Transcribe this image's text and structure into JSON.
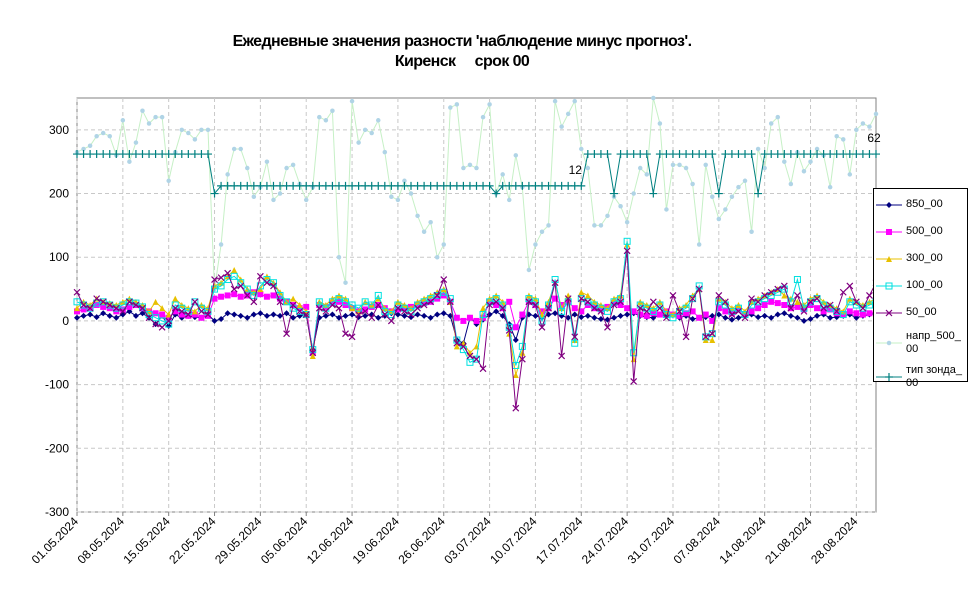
{
  "chart_data": {
    "type": "line",
    "title": "Ежедневные значения разности 'наблюдение минус прогноз'.",
    "subtitle": "Киренск     срок 00",
    "categories": [
      "01.05.2024",
      null,
      null,
      null,
      null,
      null,
      null,
      "08.05.2024",
      null,
      null,
      null,
      null,
      null,
      null,
      "15.05.2024",
      null,
      null,
      null,
      null,
      null,
      null,
      "22.05.2024",
      null,
      null,
      null,
      null,
      null,
      null,
      "29.05.2024",
      null,
      null,
      null,
      null,
      null,
      null,
      "05.06.2024",
      null,
      null,
      null,
      null,
      null,
      null,
      "12.06.2024",
      null,
      null,
      null,
      null,
      null,
      null,
      "19.06.2024",
      null,
      null,
      null,
      null,
      null,
      null,
      "26.06.2024",
      null,
      null,
      null,
      null,
      null,
      null,
      "03.07.2024",
      null,
      null,
      null,
      null,
      null,
      null,
      "10.07.2024",
      null,
      null,
      null,
      null,
      null,
      null,
      "17.07.2024",
      null,
      null,
      null,
      null,
      null,
      null,
      "24.07.2024",
      null,
      null,
      null,
      null,
      null,
      null,
      "31.07.2024",
      null,
      null,
      null,
      null,
      null,
      null,
      "07.08.2024",
      null,
      null,
      null,
      null,
      null,
      null,
      "14.08.2024",
      null,
      null,
      null,
      null,
      null,
      null,
      "21.08.2024",
      null,
      null,
      null,
      null,
      null,
      null,
      "28.08.2024",
      null,
      null,
      null
    ],
    "ylim": [
      -300,
      350
    ],
    "yticks": [
      -300,
      -200,
      -100,
      0,
      100,
      200,
      300
    ],
    "grid": true,
    "annotations": [
      "12",
      "62"
    ],
    "series": [
      {
        "name": "напр_500_00",
        "color": "#b0d4e6",
        "line_color": "#c6f0c6",
        "marker": "circle",
        "values": [
          265,
          270,
          275,
          290,
          295,
          290,
          260,
          315,
          250,
          280,
          330,
          310,
          320,
          320,
          220,
          265,
          300,
          295,
          285,
          300,
          300,
          50,
          120,
          230,
          270,
          270,
          240,
          195,
          210,
          250,
          190,
          200,
          240,
          245,
          215,
          190,
          210,
          320,
          315,
          330,
          100,
          60,
          345,
          280,
          300,
          295,
          315,
          265,
          195,
          190,
          220,
          200,
          165,
          140,
          155,
          100,
          120,
          335,
          340,
          240,
          245,
          240,
          320,
          340,
          200,
          230,
          190,
          260,
          210,
          80,
          120,
          140,
          150,
          345,
          305,
          325,
          345,
          270,
          240,
          150,
          150,
          165,
          195,
          180,
          155,
          200,
          240,
          230,
          350,
          310,
          175,
          245,
          245,
          240,
          215,
          120,
          245,
          195,
          160,
          175,
          195,
          210,
          220,
          140,
          270,
          240,
          310,
          320,
          250,
          215,
          265,
          235,
          250,
          270,
          260,
          210,
          290,
          285,
          230,
          300,
          310,
          305,
          325
        ]
      },
      {
        "name": "тип зонда_00",
        "color": "#008080",
        "marker": "plus",
        "values": [
          262,
          262,
          262,
          262,
          262,
          262,
          262,
          262,
          262,
          262,
          262,
          262,
          262,
          262,
          262,
          262,
          262,
          262,
          262,
          262,
          262,
          200,
          212,
          212,
          212,
          212,
          212,
          212,
          212,
          212,
          212,
          212,
          212,
          212,
          212,
          212,
          212,
          212,
          212,
          212,
          212,
          212,
          212,
          212,
          212,
          212,
          212,
          212,
          212,
          212,
          212,
          212,
          212,
          212,
          212,
          212,
          212,
          212,
          212,
          212,
          212,
          212,
          212,
          212,
          200,
          212,
          212,
          212,
          212,
          212,
          212,
          212,
          212,
          212,
          212,
          212,
          212,
          212,
          262,
          262,
          262,
          262,
          200,
          262,
          262,
          262,
          262,
          262,
          200,
          262,
          262,
          262,
          262,
          262,
          262,
          262,
          262,
          262,
          200,
          262,
          262,
          262,
          262,
          262,
          200,
          262,
          262,
          262,
          262,
          262,
          262,
          262,
          262,
          262,
          262,
          262,
          262,
          262,
          262,
          262,
          262,
          262,
          262
        ]
      },
      {
        "name": "850_00",
        "color": "#000080",
        "marker": "diamond",
        "values": [
          5,
          8,
          10,
          6,
          12,
          8,
          5,
          10,
          15,
          8,
          12,
          5,
          -5,
          8,
          -8,
          10,
          5,
          8,
          6,
          5,
          10,
          0,
          3,
          12,
          10,
          8,
          5,
          10,
          12,
          8,
          10,
          8,
          12,
          5,
          8,
          10,
          -45,
          5,
          8,
          10,
          5,
          8,
          10,
          6,
          8,
          10,
          5,
          8,
          12,
          10,
          8,
          6,
          10,
          8,
          5,
          10,
          12,
          8,
          -30,
          -35,
          5,
          -5,
          2,
          10,
          15,
          8,
          -5,
          -30,
          5,
          10,
          8,
          5,
          10,
          12,
          8,
          5,
          10,
          6,
          8,
          5,
          3,
          2,
          5,
          8,
          10,
          12,
          8,
          6,
          5,
          10,
          8,
          10,
          5,
          8,
          3,
          5,
          6,
          8,
          10,
          5,
          2,
          5,
          8,
          10,
          6,
          8,
          5,
          10,
          12,
          8,
          5,
          0,
          3,
          8,
          10,
          5,
          6,
          8,
          10,
          5,
          8,
          10,
          12
        ]
      },
      {
        "name": "500_00",
        "color": "#ff00ff",
        "marker": "square",
        "values": [
          15,
          18,
          20,
          25,
          22,
          20,
          15,
          18,
          22,
          25,
          20,
          15,
          12,
          10,
          5,
          15,
          10,
          8,
          10,
          5,
          8,
          35,
          38,
          40,
          42,
          38,
          40,
          45,
          42,
          38,
          40,
          35,
          30,
          25,
          20,
          22,
          -50,
          25,
          22,
          28,
          30,
          25,
          20,
          15,
          18,
          22,
          25,
          20,
          15,
          18,
          20,
          22,
          25,
          28,
          30,
          35,
          40,
          30,
          5,
          0,
          5,
          0,
          5,
          30,
          25,
          20,
          30,
          -10,
          10,
          30,
          25,
          15,
          20,
          35,
          25,
          30,
          20,
          15,
          25,
          20,
          18,
          22,
          28,
          25,
          20,
          15,
          10,
          8,
          12,
          10,
          15,
          10,
          8,
          12,
          15,
          5,
          10,
          0,
          20,
          15,
          12,
          18,
          10,
          15,
          20,
          25,
          30,
          28,
          25,
          20,
          22,
          18,
          25,
          20,
          15,
          18,
          12,
          10,
          15,
          12,
          10,
          12,
          15
        ]
      },
      {
        "name": "300_00",
        "color": "#e8c000",
        "marker": "triangle",
        "values": [
          20,
          30,
          25,
          35,
          30,
          28,
          25,
          30,
          35,
          30,
          25,
          15,
          30,
          20,
          10,
          35,
          25,
          20,
          15,
          25,
          20,
          55,
          60,
          70,
          80,
          65,
          50,
          45,
          50,
          70,
          60,
          45,
          30,
          35,
          25,
          15,
          -55,
          30,
          25,
          35,
          40,
          35,
          20,
          15,
          30,
          25,
          35,
          20,
          15,
          30,
          25,
          20,
          30,
          35,
          40,
          45,
          50,
          30,
          -40,
          -35,
          -50,
          -40,
          20,
          35,
          40,
          30,
          -20,
          -85,
          -50,
          40,
          35,
          10,
          30,
          60,
          20,
          40,
          -30,
          45,
          40,
          30,
          25,
          20,
          35,
          40,
          120,
          -60,
          30,
          25,
          20,
          30,
          15,
          10,
          20,
          25,
          40,
          50,
          -30,
          -30,
          35,
          30,
          20,
          25,
          15,
          30,
          35,
          40,
          45,
          50,
          40,
          35,
          30,
          25,
          35,
          40,
          30,
          25,
          20,
          15,
          35,
          30,
          25,
          30,
          35
        ]
      },
      {
        "name": "100_00",
        "color": "#00e0e0",
        "marker": "open-square",
        "values": [
          30,
          25,
          20,
          28,
          30,
          25,
          20,
          25,
          30,
          28,
          22,
          10,
          5,
          0,
          -5,
          25,
          20,
          15,
          30,
          20,
          15,
          50,
          55,
          65,
          70,
          60,
          50,
          40,
          55,
          65,
          60,
          40,
          30,
          20,
          15,
          10,
          -45,
          30,
          20,
          30,
          35,
          30,
          25,
          20,
          30,
          25,
          40,
          15,
          10,
          25,
          20,
          15,
          25,
          30,
          35,
          40,
          45,
          35,
          -30,
          -45,
          -65,
          -60,
          10,
          30,
          35,
          25,
          -10,
          -70,
          -40,
          35,
          30,
          0,
          25,
          65,
          15,
          30,
          -35,
          35,
          30,
          25,
          20,
          15,
          30,
          35,
          125,
          -50,
          25,
          20,
          15,
          25,
          10,
          5,
          15,
          20,
          35,
          55,
          -25,
          -20,
          30,
          25,
          15,
          20,
          10,
          25,
          30,
          35,
          40,
          45,
          50,
          30,
          65,
          20,
          30,
          35,
          25,
          20,
          15,
          10,
          30,
          25,
          20,
          25,
          30
        ]
      },
      {
        "name": "50_00",
        "color": "#800080",
        "marker": "x",
        "values": [
          45,
          25,
          20,
          35,
          30,
          25,
          20,
          15,
          30,
          25,
          20,
          5,
          -5,
          -10,
          0,
          20,
          15,
          10,
          30,
          15,
          10,
          65,
          68,
          75,
          50,
          55,
          40,
          30,
          70,
          60,
          55,
          30,
          -20,
          25,
          15,
          10,
          -50,
          20,
          15,
          25,
          20,
          -20,
          -25,
          10,
          15,
          5,
          25,
          10,
          0,
          20,
          15,
          10,
          20,
          25,
          30,
          40,
          65,
          30,
          -35,
          -40,
          -55,
          -60,
          -75,
          25,
          30,
          20,
          -15,
          -137,
          -60,
          30,
          25,
          -10,
          20,
          60,
          -55,
          35,
          -25,
          35,
          30,
          20,
          15,
          -10,
          25,
          30,
          110,
          -95,
          20,
          15,
          30,
          20,
          5,
          40,
          15,
          -25,
          35,
          50,
          -25,
          -20,
          40,
          30,
          10,
          15,
          5,
          35,
          30,
          40,
          45,
          50,
          55,
          20,
          40,
          15,
          30,
          35,
          20,
          25,
          15,
          45,
          55,
          30,
          20,
          40,
          60
        ]
      }
    ]
  }
}
